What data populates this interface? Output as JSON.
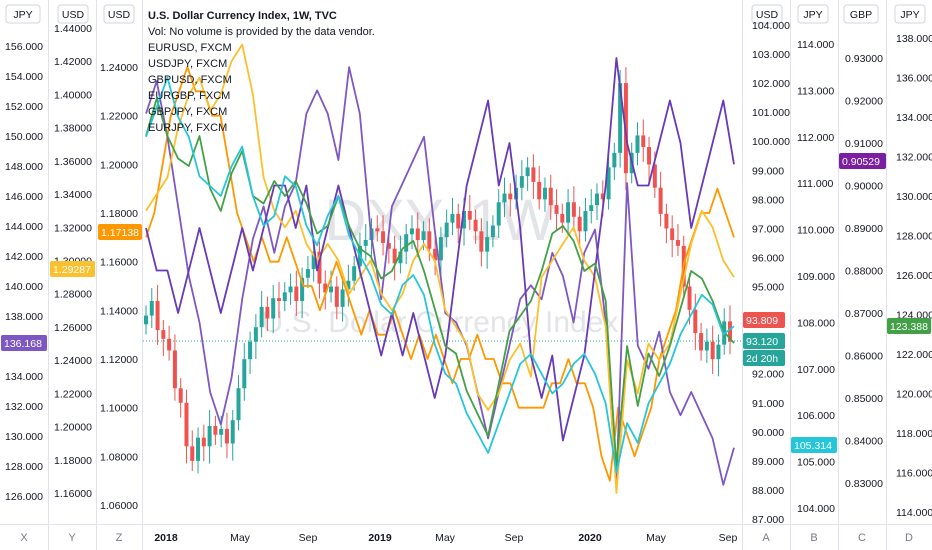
{
  "header": {
    "title": "U.S. Dollar Currency Index, 1W, TVC",
    "volume_note": "Vol: No volume is provided by the data vendor.",
    "symbols": [
      "EURUSD, FXCM",
      "USDJPY, FXCM",
      "GBPUSD, FXCM",
      "EURGBP, FXCM",
      "GBPJPY, FXCM",
      "EURJPY, FXCM"
    ]
  },
  "watermark": {
    "symbol": "DXY, 1W",
    "name": "U.S. Dollar Currency Index"
  },
  "colors": {
    "candle_up": "#26a69a",
    "candle_down": "#ef5350",
    "eurusd": "#ff9800",
    "usdjpy": "#7e57c2",
    "gbpusd": "#fbc02d",
    "eurgbp": "#673ab7",
    "gbpjpy": "#43a047",
    "eurjpy": "#26c6da"
  },
  "axes": {
    "left1": {
      "unit": "JPY",
      "id": "X",
      "ticks": [
        "156.000",
        "154.000",
        "152.000",
        "150.000",
        "148.000",
        "146.000",
        "144.000",
        "142.000",
        "140.000",
        "138.000",
        "136.000",
        "134.000",
        "132.000",
        "130.000",
        "128.000",
        "126.000"
      ],
      "tag": {
        "text": "136.168",
        "color": "#7e57c2"
      }
    },
    "left2": {
      "unit": "USD",
      "id": "Y",
      "ticks": [
        "1.44000",
        "1.42000",
        "1.40000",
        "1.38000",
        "1.36000",
        "1.34000",
        "1.32000",
        "1.30000",
        "1.28000",
        "1.26000",
        "1.24000",
        "1.22000",
        "1.20000",
        "1.18000",
        "1.16000"
      ],
      "tag": {
        "text": "1.29287",
        "color": "#fbc02d"
      }
    },
    "left3": {
      "unit": "USD",
      "id": "Z",
      "ticks": [
        "1.24000",
        "1.22000",
        "1.20000",
        "1.18000",
        "1.16000",
        "1.14000",
        "1.12000",
        "1.10000",
        "1.08000",
        "1.06000"
      ],
      "tag": {
        "text": "1.17138",
        "color": "#ff9800"
      }
    },
    "right1": {
      "unit": "USD",
      "id": "A",
      "ticks": [
        "104.000",
        "103.000",
        "102.000",
        "101.000",
        "100.000",
        "99.000",
        "98.000",
        "97.000",
        "96.000",
        "95.000",
        "94.000",
        "93.000",
        "92.000",
        "91.000",
        "90.000",
        "89.000",
        "88.000",
        "87.000"
      ],
      "tags": [
        {
          "text": "93.809",
          "color": "#ef5350"
        },
        {
          "text": "93.120",
          "color": "#26a69a"
        },
        {
          "text": "2d 20h",
          "color": "#26a69a"
        }
      ]
    },
    "right2": {
      "unit": "JPY",
      "id": "B",
      "ticks": [
        "114.000",
        "113.000",
        "112.000",
        "111.000",
        "110.000",
        "109.000",
        "108.000",
        "107.000",
        "106.000",
        "105.000",
        "104.000"
      ],
      "tag": {
        "text": "105.314",
        "color": "#26c6da"
      }
    },
    "right3": {
      "unit": "GBP",
      "id": "C",
      "ticks": [
        "0.93000",
        "0.92000",
        "0.91000",
        "0.90000",
        "0.89000",
        "0.88000",
        "0.87000",
        "0.86000",
        "0.85000",
        "0.84000",
        "0.83000"
      ],
      "tag": {
        "text": "0.90529",
        "color": "#7b1fa2"
      }
    },
    "right4": {
      "unit": "JPY",
      "id": "D",
      "ticks": [
        "138.000",
        "136.000",
        "134.000",
        "132.000",
        "130.000",
        "128.000",
        "126.000",
        "124.000",
        "122.000",
        "120.000",
        "118.000",
        "116.000",
        "114.000"
      ],
      "tag": {
        "text": "123.388",
        "color": "#43a047"
      }
    }
  },
  "time_axis": [
    "2018",
    "May",
    "Sep",
    "2019",
    "May",
    "Sep",
    "2020",
    "May",
    "Sep"
  ],
  "chart_data": {
    "type": "line",
    "title": "U.S. Dollar Currency Index, 1W, TVC",
    "x_range": [
      "2017-10",
      "2020-09"
    ],
    "dxy_candles_close": [
      94.0,
      94.5,
      93.5,
      93.2,
      92.8,
      91.5,
      91.0,
      89.5,
      89.0,
      89.8,
      89.5,
      90.2,
      89.9,
      90.1,
      89.6,
      90.4,
      91.5,
      92.5,
      93.1,
      93.6,
      94.3,
      93.9,
      94.6,
      94.5,
      94.8,
      95.0,
      94.5,
      95.3,
      95.6,
      96.2,
      95.1,
      94.8,
      95.0,
      94.3,
      94.9,
      95.2,
      95.7,
      96.4,
      96.6,
      97.0,
      96.9,
      96.5,
      96.3,
      95.8,
      96.2,
      96.8,
      97.0,
      96.6,
      96.9,
      96.3,
      95.9,
      96.7,
      97.2,
      97.5,
      97.0,
      97.6,
      97.3,
      96.9,
      96.2,
      96.7,
      97.1,
      97.9,
      98.2,
      98.0,
      98.4,
      98.8,
      99.1,
      98.6,
      98.0,
      98.4,
      97.8,
      97.5,
      97.2,
      97.9,
      97.4,
      96.9,
      97.6,
      97.8,
      98.2,
      98.0,
      99.1,
      99.6,
      102.0,
      98.9,
      99.6,
      100.2,
      99.8,
      99.2,
      98.4,
      97.5,
      97.0,
      96.6,
      96.4,
      95.0,
      94.2,
      93.4,
      92.8,
      93.1,
      92.5,
      93.0,
      93.8,
      93.1
    ],
    "series": [
      {
        "name": "EURUSD, FXCM",
        "values": [
          1.17,
          1.18,
          1.2,
          1.22,
          1.23,
          1.24,
          1.23,
          1.23,
          1.22,
          1.22,
          1.2,
          1.18,
          1.17,
          1.16,
          1.17,
          1.16,
          1.16,
          1.17,
          1.16,
          1.15,
          1.15,
          1.14,
          1.15,
          1.16,
          1.15,
          1.14,
          1.13,
          1.14,
          1.13,
          1.13,
          1.14,
          1.13,
          1.12,
          1.13,
          1.12,
          1.13,
          1.12,
          1.11,
          1.12,
          1.12,
          1.13,
          1.12,
          1.12,
          1.11,
          1.11,
          1.1,
          1.1,
          1.1,
          1.1,
          1.11,
          1.11,
          1.12,
          1.11,
          1.11,
          1.1,
          1.08,
          1.07,
          1.1,
          1.09,
          1.08,
          1.09,
          1.1,
          1.12,
          1.13,
          1.14,
          1.16,
          1.17,
          1.18,
          1.18,
          1.19,
          1.18,
          1.17
        ]
      },
      {
        "name": "USDJPY, FXCM",
        "values": [
          112.5,
          113.2,
          112.0,
          110.5,
          109.0,
          108.0,
          106.5,
          105.8,
          106.8,
          108.5,
          109.8,
          110.5,
          109.5,
          110.5,
          111.0,
          112.5,
          113.0,
          112.5,
          111.5,
          113.5,
          112.5,
          110.0,
          108.5,
          110.5,
          111.0,
          111.5,
          112.0,
          110.0,
          108.2,
          108.0,
          107.5,
          106.5,
          105.5,
          106.5,
          107.5,
          108.5,
          108.8,
          108.5,
          109.5,
          109.0,
          108.0,
          109.5,
          110.0,
          108.0,
          104.5,
          111.0,
          107.5,
          107.0,
          107.8,
          106.5,
          106.0,
          106.5,
          106.0,
          105.5,
          104.5,
          105.3
        ]
      },
      {
        "name": "GBPUSD, FXCM",
        "values": [
          1.33,
          1.34,
          1.35,
          1.38,
          1.4,
          1.41,
          1.39,
          1.4,
          1.42,
          1.43,
          1.4,
          1.35,
          1.33,
          1.32,
          1.33,
          1.31,
          1.3,
          1.31,
          1.3,
          1.28,
          1.29,
          1.3,
          1.28,
          1.27,
          1.28,
          1.3,
          1.31,
          1.3,
          1.27,
          1.26,
          1.25,
          1.22,
          1.21,
          1.22,
          1.24,
          1.25,
          1.23,
          1.29,
          1.3,
          1.31,
          1.32,
          1.3,
          1.29,
          1.26,
          1.16,
          1.24,
          1.22,
          1.25,
          1.24,
          1.25,
          1.28,
          1.31,
          1.33,
          1.32,
          1.3,
          1.29
        ]
      },
      {
        "name": "EURGBP, FXCM",
        "values": [
          0.89,
          0.88,
          0.88,
          0.87,
          0.88,
          0.89,
          0.88,
          0.87,
          0.88,
          0.89,
          0.88,
          0.89,
          0.9,
          0.9,
          0.89,
          0.9,
          0.88,
          0.89,
          0.9,
          0.89,
          0.88,
          0.87,
          0.86,
          0.87,
          0.86,
          0.87,
          0.86,
          0.85,
          0.86,
          0.88,
          0.9,
          0.91,
          0.92,
          0.9,
          0.91,
          0.89,
          0.86,
          0.85,
          0.86,
          0.84,
          0.85,
          0.86,
          0.88,
          0.9,
          0.93,
          0.91,
          0.9,
          0.9,
          0.91,
          0.92,
          0.91,
          0.89,
          0.9,
          0.91,
          0.92,
          0.905
        ]
      },
      {
        "name": "GBPJPY, FXCM",
        "values": [
          150.0,
          152.5,
          150.0,
          148.5,
          148.0,
          150.0,
          146.5,
          145.0,
          147.5,
          149.0,
          146.0,
          145.5,
          147.0,
          146.0,
          147.0,
          145.5,
          143.5,
          144.0,
          146.0,
          144.0,
          142.5,
          142.0,
          140.5,
          141.0,
          142.5,
          143.0,
          141.0,
          138.5,
          136.0,
          135.5,
          133.0,
          131.5,
          130.0,
          133.5,
          137.0,
          138.0,
          139.0,
          141.0,
          143.5,
          144.0,
          143.0,
          141.0,
          141.5,
          139.0,
          128.0,
          136.0,
          132.0,
          135.5,
          134.0,
          136.0,
          138.5,
          141.0,
          140.5,
          139.0,
          137.0,
          136.2
        ]
      },
      {
        "name": "EURJPY, FXCM",
        "values": [
          133.0,
          134.5,
          136.0,
          134.0,
          133.0,
          131.0,
          130.5,
          130.0,
          131.5,
          132.5,
          130.0,
          128.5,
          129.0,
          131.0,
          130.5,
          128.5,
          127.5,
          129.0,
          130.0,
          128.0,
          127.0,
          126.0,
          124.5,
          124.0,
          125.5,
          126.0,
          125.0,
          122.5,
          121.0,
          120.5,
          119.0,
          118.0,
          117.0,
          118.5,
          120.0,
          121.5,
          122.0,
          121.0,
          120.0,
          120.5,
          121.5,
          122.0,
          121.0,
          119.5,
          116.0,
          118.5,
          117.5,
          119.5,
          120.5,
          121.5,
          123.0,
          124.0,
          125.0,
          124.5,
          123.0,
          123.4
        ]
      }
    ]
  }
}
